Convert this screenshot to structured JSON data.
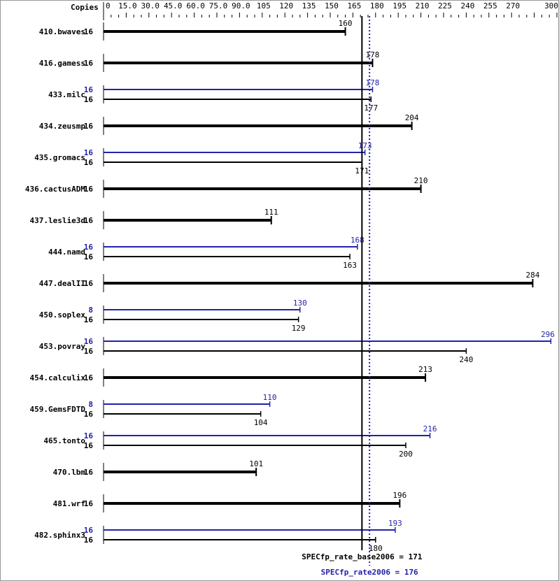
{
  "chart_data": {
    "type": "bar",
    "orientation": "horizontal",
    "copies_header": "Copies",
    "xlim": [
      0,
      300
    ],
    "ticks": [
      "0",
      "15.0",
      "30.0",
      "45.0",
      "60.0",
      "75.0",
      "90.0",
      "105",
      "120",
      "135",
      "150",
      "165",
      "180",
      "195",
      "210",
      "225",
      "240",
      "255",
      "270",
      "300"
    ],
    "tick_values": [
      0,
      15,
      30,
      45,
      60,
      75,
      90,
      105,
      120,
      135,
      150,
      165,
      180,
      195,
      210,
      225,
      240,
      255,
      270,
      300
    ],
    "colors": {
      "base": "#000000",
      "peak": "#2222aa"
    },
    "benchmarks": [
      {
        "name": "410.bwaves",
        "base_copies": "16",
        "base": 160
      },
      {
        "name": "416.gamess",
        "base_copies": "16",
        "base": 178
      },
      {
        "name": "433.milc",
        "peak_copies": "16",
        "peak": 178,
        "base_copies": "16",
        "base": 177
      },
      {
        "name": "434.zeusmp",
        "base_copies": "16",
        "base": 204
      },
      {
        "name": "435.gromacs",
        "peak_copies": "16",
        "peak": 173,
        "base_copies": "16",
        "base": 171
      },
      {
        "name": "436.cactusADM",
        "base_copies": "16",
        "base": 210
      },
      {
        "name": "437.leslie3d",
        "base_copies": "16",
        "base": 111
      },
      {
        "name": "444.namd",
        "peak_copies": "16",
        "peak": 168,
        "base_copies": "16",
        "base": 163
      },
      {
        "name": "447.dealII",
        "base_copies": "16",
        "base": 284
      },
      {
        "name": "450.soplex",
        "peak_copies": "8",
        "peak": 130,
        "base_copies": "16",
        "base": 129
      },
      {
        "name": "453.povray",
        "peak_copies": "16",
        "peak": 296,
        "base_copies": "16",
        "base": 240
      },
      {
        "name": "454.calculix",
        "base_copies": "16",
        "base": 213
      },
      {
        "name": "459.GemsFDTD",
        "peak_copies": "8",
        "peak": 110,
        "base_copies": "16",
        "base": 104
      },
      {
        "name": "465.tonto",
        "peak_copies": "16",
        "peak": 216,
        "base_copies": "16",
        "base": 200
      },
      {
        "name": "470.lbm",
        "base_copies": "16",
        "base": 101
      },
      {
        "name": "481.wrf",
        "base_copies": "16",
        "base": 196
      },
      {
        "name": "482.sphinx3",
        "peak_copies": "16",
        "peak": 193,
        "base_copies": "16",
        "base": 180
      }
    ],
    "base_summary": {
      "label": "SPECfp_rate_base2006 = 171",
      "value": 171
    },
    "peak_summary": {
      "label": "SPECfp_rate2006 = 176",
      "value": 176
    }
  }
}
